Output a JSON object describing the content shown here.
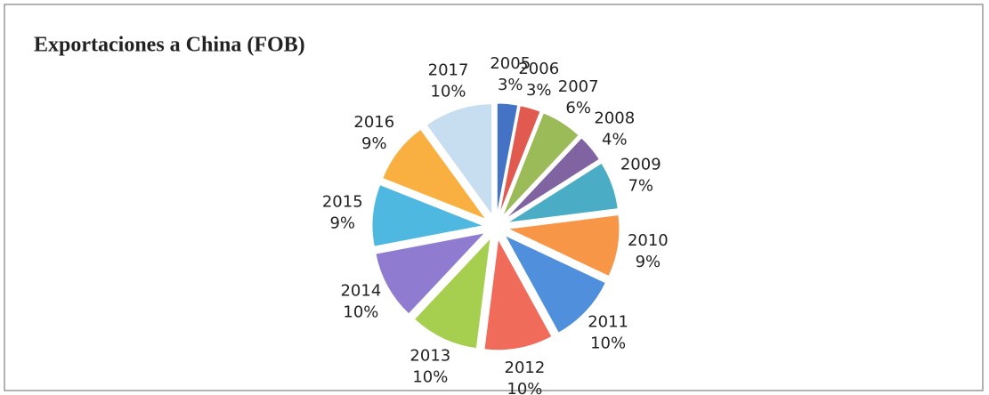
{
  "chart_data": {
    "type": "pie",
    "title": "Exportaciones a China (FOB)",
    "categories": [
      "2005",
      "2006",
      "2007",
      "2008",
      "2009",
      "2010",
      "2011",
      "2012",
      "2013",
      "2014",
      "2015",
      "2016",
      "2017"
    ],
    "values": [
      3,
      3,
      6,
      4,
      7,
      9,
      10,
      10,
      10,
      10,
      9,
      9,
      10
    ],
    "value_labels": [
      "3%",
      "3%",
      "6%",
      "4%",
      "7%",
      "9%",
      "10%",
      "10%",
      "10%",
      "10%",
      "9%",
      "9%",
      "10%"
    ],
    "colors": [
      "#4472c4",
      "#e05a4f",
      "#9bbb59",
      "#8064a2",
      "#4bacc6",
      "#f79646",
      "#4f8fdc",
      "#f06b5a",
      "#a6cf50",
      "#8f7bd0",
      "#4fb8e0",
      "#f9b040",
      "#c7def0"
    ]
  }
}
